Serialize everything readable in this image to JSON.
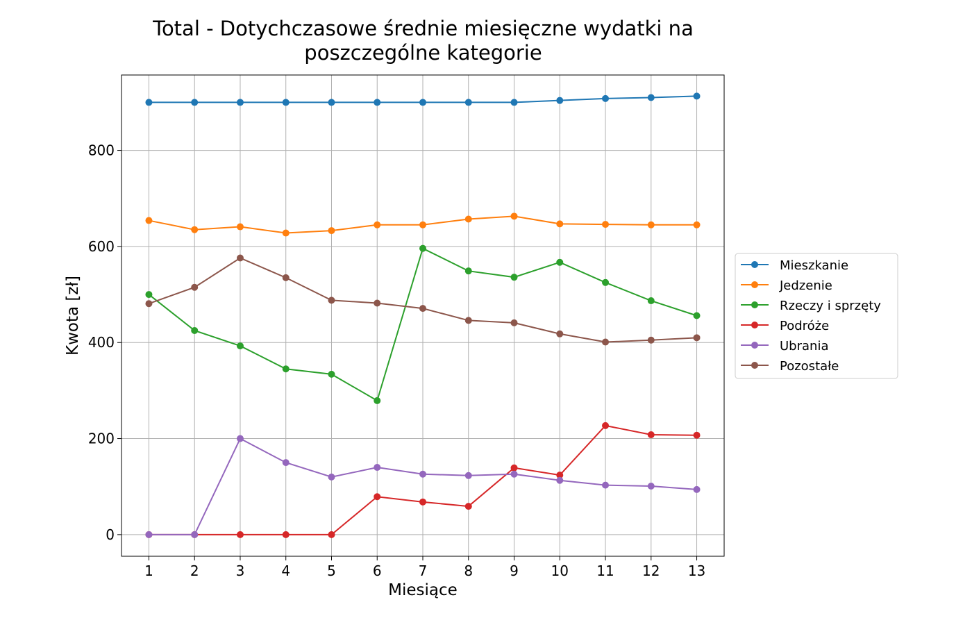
{
  "chart_data": {
    "type": "line",
    "title_lines": [
      "Total - Dotychczasowe średnie miesięczne wydatki na",
      "poszczególne kategorie"
    ],
    "xlabel": "Miesiące",
    "ylabel": "Kwota [zł]",
    "x": [
      1,
      2,
      3,
      4,
      5,
      6,
      7,
      8,
      9,
      10,
      11,
      12,
      13
    ],
    "xlim": [
      0.4,
      13.6
    ],
    "ylim": [
      -45,
      957
    ],
    "yticks": [
      0,
      200,
      400,
      600,
      800
    ],
    "grid": true,
    "legend_position": "right",
    "series": [
      {
        "name": "Mieszkanie",
        "color": "#1f77b4",
        "values": [
          900,
          900,
          900,
          900,
          900,
          900,
          900,
          900,
          900,
          904,
          908,
          910,
          913
        ]
      },
      {
        "name": "Jedzenie",
        "color": "#ff7f0e",
        "values": [
          654,
          635,
          641,
          628,
          633,
          645,
          645,
          657,
          663,
          647,
          646,
          645,
          645
        ]
      },
      {
        "name": "Rzeczy i sprzęty",
        "color": "#2ca02c",
        "values": [
          500,
          425,
          393,
          345,
          334,
          279,
          596,
          549,
          536,
          567,
          525,
          487,
          456
        ]
      },
      {
        "name": "Podróże",
        "color": "#d62728",
        "values": [
          0,
          0,
          0,
          0,
          0,
          79,
          68,
          59,
          139,
          124,
          227,
          208,
          207
        ]
      },
      {
        "name": "Ubrania",
        "color": "#9467bd",
        "values": [
          0,
          0,
          200,
          150,
          120,
          140,
          126,
          123,
          126,
          113,
          103,
          101,
          94
        ]
      },
      {
        "name": "Pozostałe",
        "color": "#8c564b",
        "values": [
          481,
          515,
          576,
          535,
          488,
          482,
          471,
          446,
          441,
          418,
          401,
          405,
          410
        ]
      }
    ]
  }
}
